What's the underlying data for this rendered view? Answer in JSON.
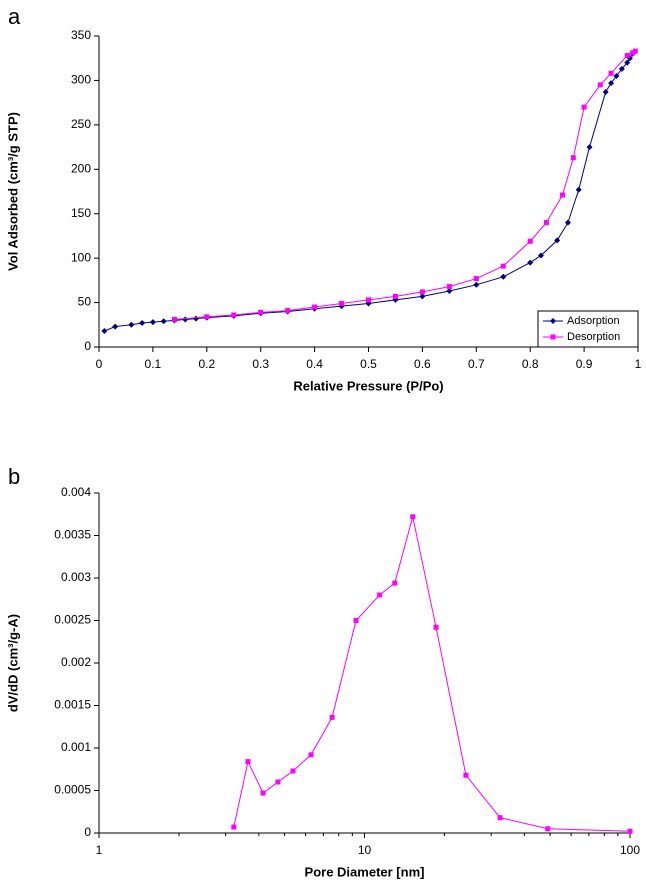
{
  "chart_data": [
    {
      "type": "line",
      "panel_label": "a",
      "xlabel": "Relative Pressure (P/Po)",
      "ylabel": "Vol Adsorbed (cm³/g STP)",
      "xlim": [
        0,
        1
      ],
      "xticks": [
        0,
        0.1,
        0.2,
        0.3,
        0.4,
        0.5,
        0.6,
        0.7,
        0.8,
        0.9,
        1
      ],
      "ylim": [
        0,
        350
      ],
      "yticks": [
        0,
        50,
        100,
        150,
        200,
        250,
        300,
        350
      ],
      "legend": "lower right",
      "series": [
        {
          "name": "Adsorption",
          "color": "#000080",
          "marker": "diamond",
          "x": [
            0.01,
            0.03,
            0.06,
            0.08,
            0.1,
            0.12,
            0.14,
            0.16,
            0.18,
            0.2,
            0.25,
            0.3,
            0.35,
            0.4,
            0.45,
            0.5,
            0.55,
            0.6,
            0.65,
            0.7,
            0.75,
            0.8,
            0.82,
            0.85,
            0.87,
            0.89,
            0.91,
            0.94,
            0.95,
            0.96,
            0.97,
            0.98,
            0.985,
            0.99
          ],
          "values": [
            18,
            23,
            25,
            27,
            28,
            29,
            30,
            31,
            32,
            33,
            35,
            38,
            40,
            43,
            46,
            49,
            53,
            57,
            63,
            70,
            79,
            95,
            103,
            120,
            140,
            177,
            225,
            287,
            297,
            305,
            313,
            320,
            325,
            330
          ]
        },
        {
          "name": "Desorption",
          "color": "#ff00ff",
          "marker": "square",
          "x": [
            0.995,
            0.99,
            0.98,
            0.95,
            0.93,
            0.9,
            0.88,
            0.86,
            0.83,
            0.8,
            0.75,
            0.7,
            0.65,
            0.6,
            0.55,
            0.5,
            0.45,
            0.4,
            0.35,
            0.3,
            0.25,
            0.2,
            0.14
          ],
          "values": [
            333,
            331,
            328,
            308,
            295,
            270,
            213,
            171,
            140,
            119,
            91,
            77,
            68,
            62,
            57,
            53,
            49,
            45,
            41,
            39,
            36,
            34,
            31
          ]
        }
      ]
    },
    {
      "type": "line",
      "panel_label": "b",
      "xlabel": "Pore Diameter [nm]",
      "ylabel": "dV/dD (cm³/g-A)",
      "xscale": "log",
      "xlim": [
        1,
        100
      ],
      "xticks": [
        1,
        10,
        100
      ],
      "ylim": [
        0,
        0.004
      ],
      "yticks": [
        0,
        0.0005,
        0.001,
        0.0015,
        0.002,
        0.0025,
        0.003,
        0.0035,
        0.004
      ],
      "series": [
        {
          "color": "#ff00ff",
          "marker": "square",
          "x": [
            3.22,
            3.64,
            4.15,
            4.72,
            5.38,
            6.29,
            7.55,
            9.29,
            11.4,
            13,
            15.2,
            18.6,
            24.1,
            32.4,
            49,
            100
          ],
          "values": [
            7e-05,
            0.00084,
            0.00047,
            0.0006,
            0.00073,
            0.00092,
            0.00136,
            0.0025,
            0.0028,
            0.00294,
            0.00372,
            0.00242,
            0.00068,
            0.00018,
            5e-05,
            2e-05
          ]
        }
      ]
    }
  ]
}
